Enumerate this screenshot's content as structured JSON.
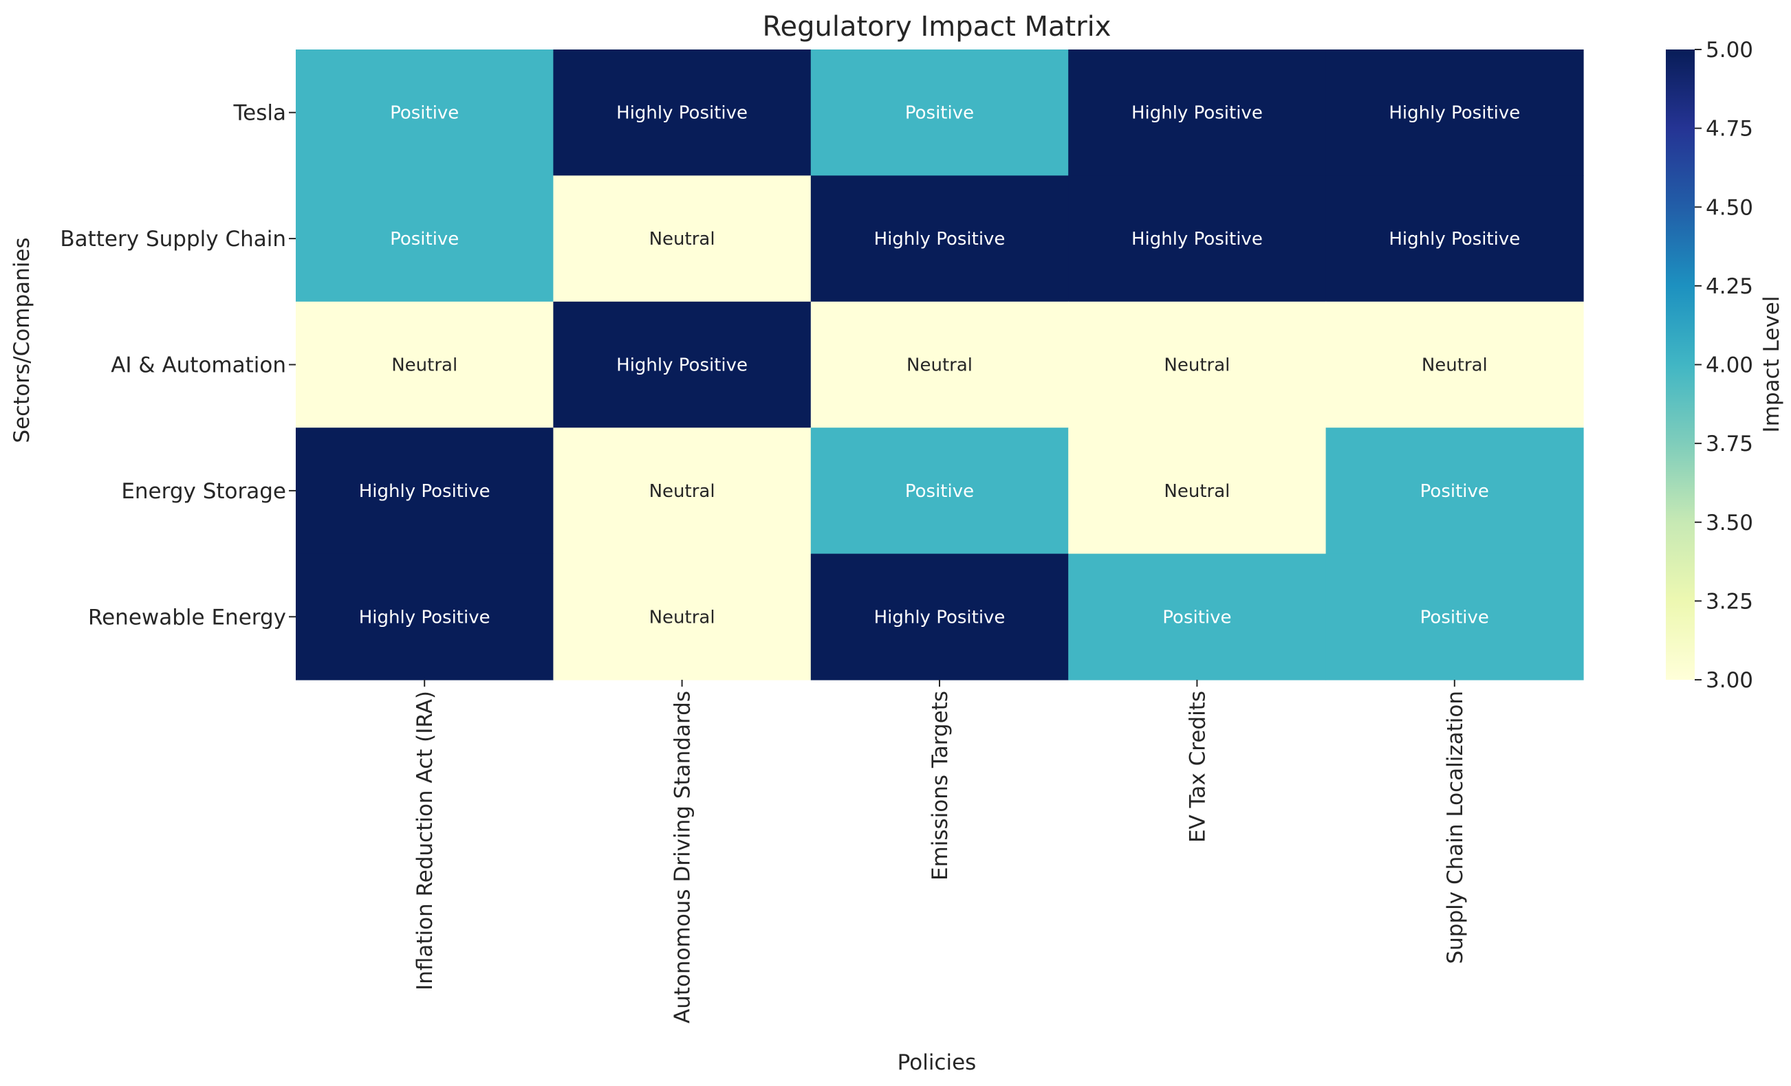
{
  "chart_data": {
    "type": "heatmap",
    "title": "Regulatory Impact Matrix",
    "xlabel": "Policies",
    "ylabel": "Sectors/Companies",
    "x_categories": [
      "Inflation Reduction Act (IRA)",
      "Autonomous Driving Standards",
      "Emissions Targets",
      "EV Tax Credits",
      "Supply Chain Localization"
    ],
    "y_categories": [
      "Tesla",
      "Battery Supply Chain",
      "AI & Automation",
      "Energy Storage",
      "Renewable Energy"
    ],
    "values": [
      [
        4,
        5,
        4,
        5,
        5
      ],
      [
        4,
        3,
        5,
        5,
        5
      ],
      [
        3,
        5,
        3,
        3,
        3
      ],
      [
        5,
        3,
        4,
        3,
        4
      ],
      [
        5,
        3,
        5,
        4,
        4
      ]
    ],
    "annotations": [
      [
        "Positive",
        "Highly Positive",
        "Positive",
        "Highly Positive",
        "Highly Positive"
      ],
      [
        "Positive",
        "Neutral",
        "Highly Positive",
        "Highly Positive",
        "Highly Positive"
      ],
      [
        "Neutral",
        "Highly Positive",
        "Neutral",
        "Neutral",
        "Neutral"
      ],
      [
        "Highly Positive",
        "Neutral",
        "Positive",
        "Neutral",
        "Positive"
      ],
      [
        "Highly Positive",
        "Neutral",
        "Highly Positive",
        "Positive",
        "Positive"
      ]
    ],
    "colorbar": {
      "label": "Impact Level",
      "range": [
        3.0,
        5.0
      ],
      "ticks": [
        "3.00",
        "3.25",
        "3.50",
        "3.75",
        "4.00",
        "4.25",
        "4.50",
        "4.75",
        "5.00"
      ],
      "colormap": "YlGnBu"
    },
    "colors": {
      "low": "#ffffd9",
      "mid": "#41b6c4",
      "high": "#081d58"
    }
  }
}
